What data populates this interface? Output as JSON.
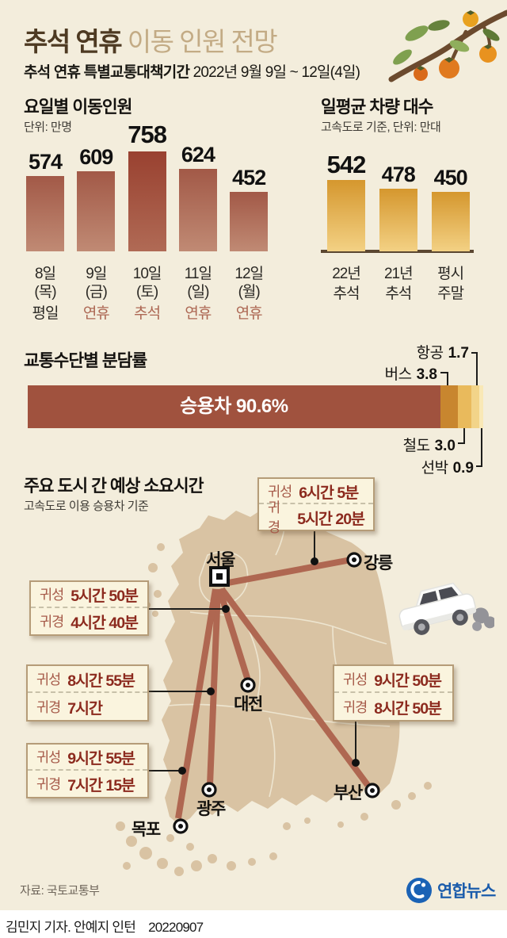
{
  "header": {
    "title_strong": "추석 연휴",
    "title_rest": " 이동 인원 전망",
    "subtitle_strong": "추석 연휴 특별교통대책기간",
    "subtitle_rest": " 2022년 9월 9일 ~ 12일(4일)"
  },
  "chart_data": [
    {
      "id": "daily-movement",
      "type": "bar",
      "title": "요일별 이동인원",
      "unit": "단위: 만명",
      "ylim": [
        0,
        758
      ],
      "bars": [
        {
          "value": 574,
          "date": "8일",
          "day": "(목)",
          "tag": "평일",
          "tag_type": "plain",
          "highlight": false
        },
        {
          "value": 609,
          "date": "9일",
          "day": "(금)",
          "tag": "연휴",
          "tag_type": "holiday",
          "highlight": false
        },
        {
          "value": 758,
          "date": "10일",
          "day": "(토)",
          "tag": "추석",
          "tag_type": "holiday",
          "highlight": true
        },
        {
          "value": 624,
          "date": "11일",
          "day": "(일)",
          "tag": "연휴",
          "tag_type": "holiday",
          "highlight": false
        },
        {
          "value": 452,
          "date": "12일",
          "day": "(월)",
          "tag": "연휴",
          "tag_type": "holiday",
          "highlight": false
        }
      ]
    },
    {
      "id": "daily-vehicles",
      "type": "bar",
      "title": "일평균 차량 대수",
      "unit": "고속도로 기준, 단위: 만대",
      "ylim": [
        0,
        758
      ],
      "bars": [
        {
          "value": 542,
          "line1": "22년",
          "line2": "추석",
          "highlight": true
        },
        {
          "value": 478,
          "line1": "21년",
          "line2": "추석",
          "highlight": false
        },
        {
          "value": 450,
          "line1": "평시",
          "line2": "주말",
          "highlight": false
        }
      ]
    },
    {
      "id": "mode-share",
      "type": "stacked-bar",
      "title": "교통수단별 분담률",
      "unit_pct": true,
      "segments": [
        {
          "label": "승용차",
          "value": 90.6,
          "display": "90.6%",
          "color": "#A0523E"
        },
        {
          "label": "버스",
          "value": 3.8,
          "display": "3.8",
          "color": "#C8862F"
        },
        {
          "label": "철도",
          "value": 3.0,
          "display": "3.0",
          "color": "#E9BA5C"
        },
        {
          "label": "항공",
          "value": 1.7,
          "display": "1.7",
          "color": "#F2D489"
        },
        {
          "label": "선박",
          "value": 0.9,
          "display": "0.9",
          "color": "#F9E8B6"
        }
      ]
    }
  ],
  "map": {
    "title": "주요 도시 간 예상 소요시간",
    "subtitle": "고속도로 이용 승용차 기준",
    "origin_city": "서울",
    "direction_labels": {
      "gwiseong": "귀성",
      "gwigyeong": "귀경"
    },
    "routes": [
      {
        "city": "강릉",
        "gwiseong": "6시간 5분",
        "gwigyeong": "5시간 20분"
      },
      {
        "city": "대전",
        "gwiseong": "5시간 50분",
        "gwigyeong": "4시간 40분"
      },
      {
        "city": "광주",
        "gwiseong": "8시간 55분",
        "gwigyeong": "7시간"
      },
      {
        "city": "목포",
        "gwiseong": "9시간 55분",
        "gwigyeong": "7시간 15분"
      },
      {
        "city": "부산",
        "gwiseong": "9시간 50분",
        "gwigyeong": "8시간 50분"
      }
    ]
  },
  "footer": {
    "source": "자료: 국토교통부",
    "logo_text": "연합뉴스",
    "byline": "김민지 기자. 안예지 인턴",
    "date": "20220907"
  },
  "colors": {
    "background": "#F3EDDC",
    "title_brown": "#4E3A22",
    "title_tan": "#C3AB85",
    "bar_red_top": "#A25947",
    "bar_red_highlight": "#994130",
    "bar_gold_top": "#D5972E",
    "land": "#D9C3A3",
    "route": "#AF6751",
    "box_bg": "#FAF4DE",
    "box_border": "#B59C78",
    "time_red": "#8C2A1E",
    "yonhap_blue": "#1B5CAB"
  }
}
